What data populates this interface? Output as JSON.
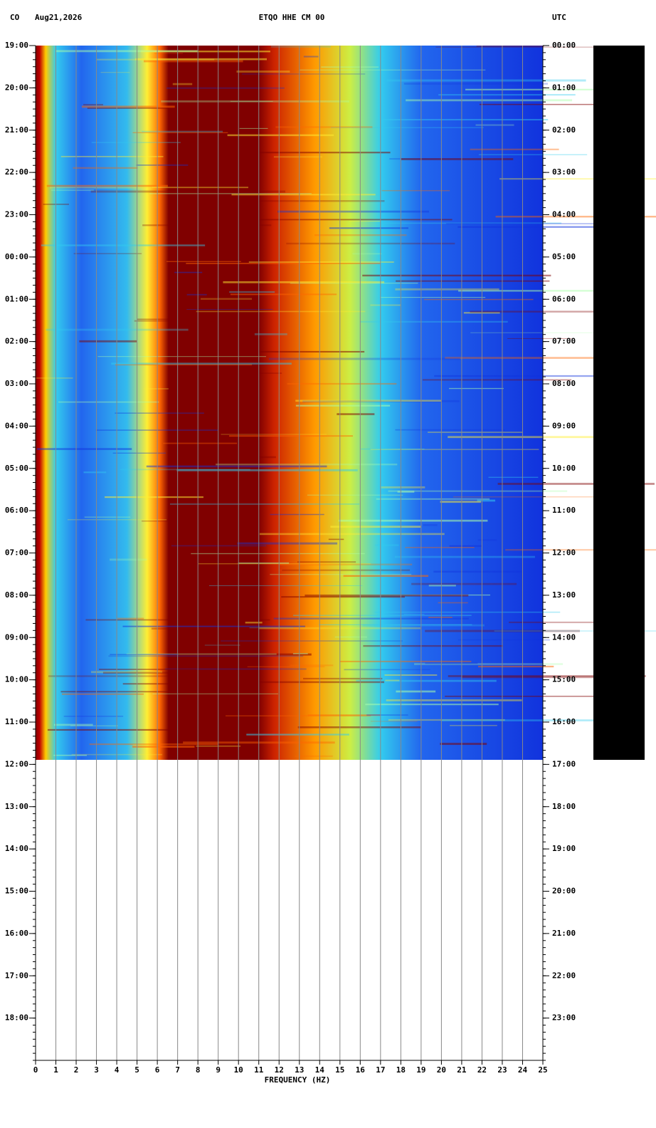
{
  "chart_data": {
    "type": "spectrogram",
    "network": "CO",
    "date": "Aug21,2026",
    "title": "ETQO HHE CM 00",
    "timezone": "UTC",
    "xlabel": "FREQUENCY (HZ)",
    "xlim": [
      0,
      25
    ],
    "xticks": [
      0,
      1,
      2,
      3,
      4,
      5,
      6,
      7,
      8,
      9,
      10,
      11,
      12,
      13,
      14,
      15,
      16,
      17,
      18,
      19,
      20,
      21,
      22,
      23,
      24,
      25
    ],
    "grid": true,
    "ylim": [
      0,
      24
    ],
    "yticks": [
      {
        "value": 0,
        "label": "19:00"
      },
      {
        "value": 1,
        "label": "20:00"
      },
      {
        "value": 2,
        "label": "21:00"
      },
      {
        "value": 3,
        "label": "22:00"
      },
      {
        "value": 4,
        "label": "23:00"
      },
      {
        "value": 5,
        "label": "00:00"
      },
      {
        "value": 6,
        "label": "01:00"
      },
      {
        "value": 7,
        "label": "02:00"
      },
      {
        "value": 8,
        "label": "03:00"
      },
      {
        "value": 9,
        "label": "04:00"
      },
      {
        "value": 10,
        "label": "05:00"
      },
      {
        "value": 11,
        "label": "06:00"
      },
      {
        "value": 12,
        "label": "07:00"
      },
      {
        "value": 13,
        "label": "08:00"
      },
      {
        "value": 14,
        "label": "09:00"
      },
      {
        "value": 15,
        "label": "10:00"
      },
      {
        "value": 16,
        "label": "11:00"
      },
      {
        "value": 17,
        "label": "12:00"
      },
      {
        "value": 18,
        "label": "13:00"
      },
      {
        "value": 19,
        "label": "14:00"
      },
      {
        "value": 20,
        "label": "15:00"
      },
      {
        "value": 21,
        "label": "16:00"
      },
      {
        "value": 22,
        "label": "17:00"
      },
      {
        "value": 23,
        "label": "18:00"
      }
    ],
    "y2lim": [
      0,
      24
    ],
    "y2ticks": [
      {
        "value": 0,
        "label": "00:00"
      },
      {
        "value": 1,
        "label": "01:00"
      },
      {
        "value": 2,
        "label": "02:00"
      },
      {
        "value": 3,
        "label": "03:00"
      },
      {
        "value": 4,
        "label": "04:00"
      },
      {
        "value": 5,
        "label": "05:00"
      },
      {
        "value": 6,
        "label": "06:00"
      },
      {
        "value": 7,
        "label": "07:00"
      },
      {
        "value": 8,
        "label": "08:00"
      },
      {
        "value": 9,
        "label": "09:00"
      },
      {
        "value": 10,
        "label": "10:00"
      },
      {
        "value": 11,
        "label": "11:00"
      },
      {
        "value": 12,
        "label": "12:00"
      },
      {
        "value": 13,
        "label": "13:00"
      },
      {
        "value": 14,
        "label": "14:00"
      },
      {
        "value": 15,
        "label": "15:00"
      },
      {
        "value": 16,
        "label": "16:00"
      },
      {
        "value": 17,
        "label": "17:00"
      },
      {
        "value": 18,
        "label": "18:00"
      },
      {
        "value": 19,
        "label": "19:00"
      },
      {
        "value": 20,
        "label": "20:00"
      },
      {
        "value": 21,
        "label": "21:00"
      },
      {
        "value": 22,
        "label": "22:00"
      },
      {
        "value": 23,
        "label": "23:00"
      }
    ]
  }
}
